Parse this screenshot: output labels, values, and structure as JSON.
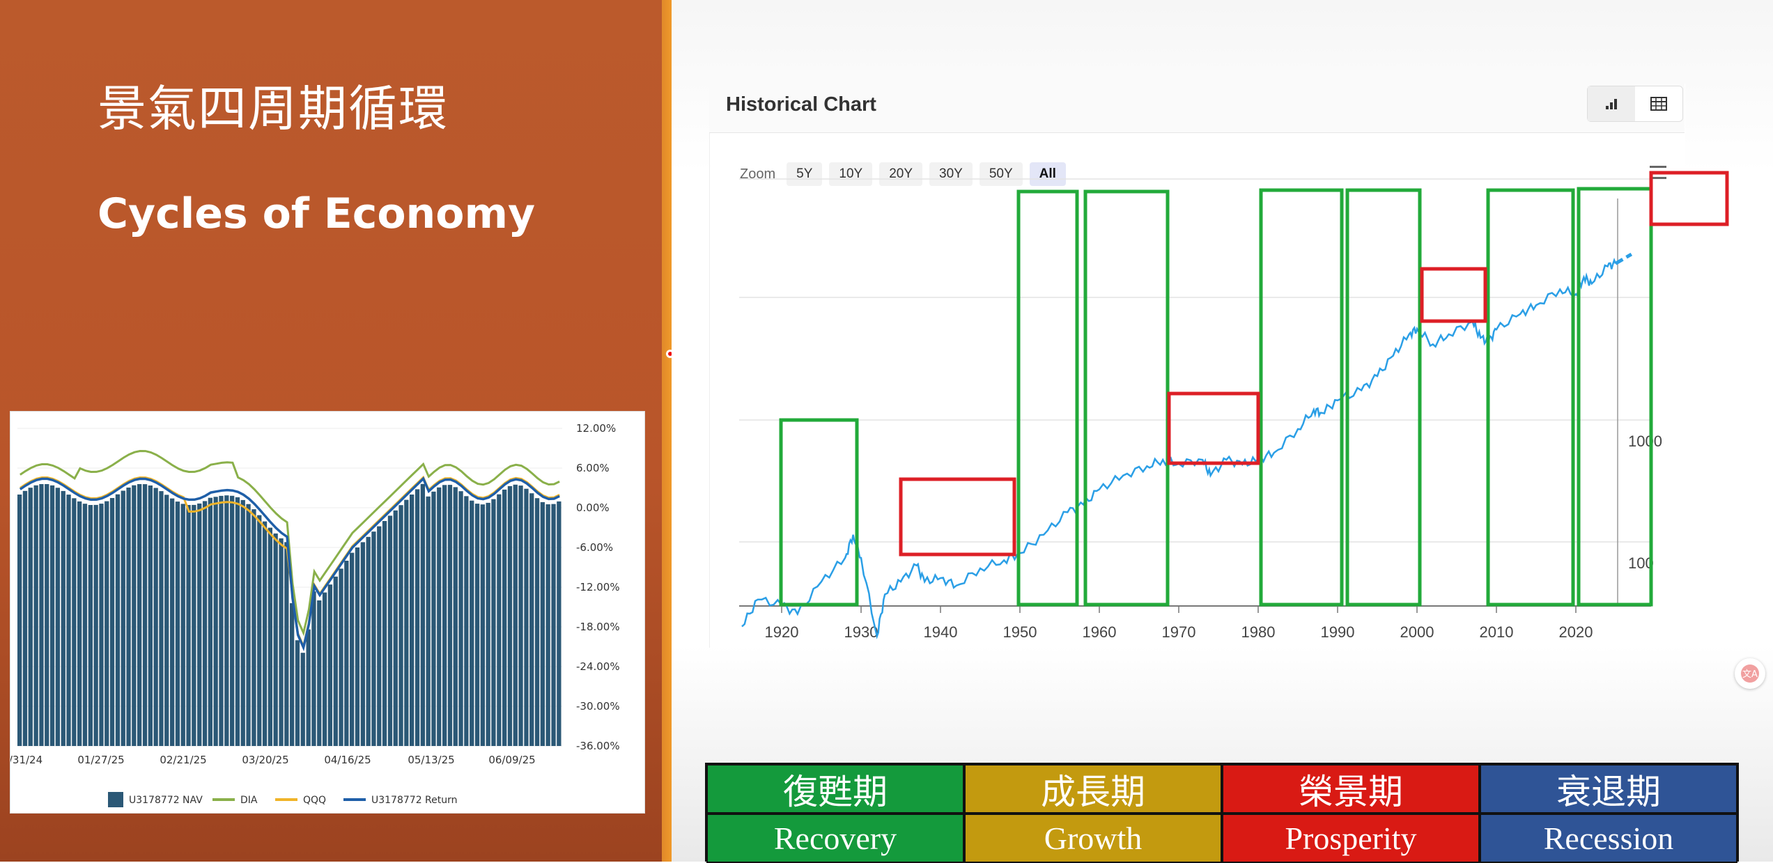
{
  "slide": {
    "title_zh": "景氣四周期循環",
    "title_en": "Cycles of Economy"
  },
  "portfolio_chart": {
    "y_ticks": [
      "12.00%",
      "6.00%",
      "0.00%",
      "-6.00%",
      "-12.00%",
      "-18.00%",
      "-24.00%",
      "-30.00%",
      "-36.00%"
    ],
    "x_ticks": [
      "/31/24",
      "01/27/25",
      "02/21/25",
      "03/20/25",
      "04/16/25",
      "05/13/25",
      "06/09/25"
    ],
    "legend": [
      "U3178772 NAV",
      "DIA",
      "QQQ",
      "U3178772 Return"
    ],
    "colors": {
      "nav": "#2b5876",
      "dia": "#8ab04a",
      "qqq": "#f0b429",
      "ret": "#1f5fa8"
    }
  },
  "historical_chart": {
    "title": "Historical Chart",
    "zoom_label": "Zoom",
    "zoom_options": [
      "5Y",
      "10Y",
      "20Y",
      "30Y",
      "50Y",
      "All"
    ],
    "zoom_selected": "All",
    "view_icons": [
      "bar-chart-icon",
      "table-icon"
    ],
    "x_ticks": [
      "1920",
      "1930",
      "1940",
      "1950",
      "1960",
      "1970",
      "1980",
      "1990",
      "2000",
      "2010",
      "2020"
    ],
    "y_ticks": [
      "1000",
      "100"
    ],
    "line_color": "#2b9fe6",
    "green_box_color": "#22aa3a",
    "red_box_color": "#dd1f26"
  },
  "chart_data": [
    {
      "type": "line",
      "title": "Historical Chart",
      "scale": "log",
      "x_range": [
        1915,
        2028
      ],
      "points": [
        [
          1915,
          30
        ],
        [
          1917,
          50
        ],
        [
          1920,
          45
        ],
        [
          1922,
          38
        ],
        [
          1925,
          70
        ],
        [
          1928,
          110
        ],
        [
          1929,
          170
        ],
        [
          1930,
          110
        ],
        [
          1932,
          25
        ],
        [
          1933,
          55
        ],
        [
          1935,
          70
        ],
        [
          1937,
          95
        ],
        [
          1938,
          70
        ],
        [
          1940,
          75
        ],
        [
          1942,
          65
        ],
        [
          1945,
          90
        ],
        [
          1948,
          105
        ],
        [
          1950,
          120
        ],
        [
          1953,
          170
        ],
        [
          1956,
          260
        ],
        [
          1958,
          300
        ],
        [
          1960,
          400
        ],
        [
          1963,
          520
        ],
        [
          1966,
          620
        ],
        [
          1968,
          700
        ],
        [
          1970,
          650
        ],
        [
          1973,
          700
        ],
        [
          1974,
          520
        ],
        [
          1976,
          700
        ],
        [
          1978,
          640
        ],
        [
          1980,
          700
        ],
        [
          1982,
          800
        ],
        [
          1985,
          1250
        ],
        [
          1987,
          1800
        ],
        [
          1988,
          1700
        ],
        [
          1990,
          2150
        ],
        [
          1993,
          2600
        ],
        [
          1995,
          3400
        ],
        [
          1997,
          5000
        ],
        [
          1999,
          7500
        ],
        [
          2000,
          8300
        ],
        [
          2002,
          6200
        ],
        [
          2004,
          7500
        ],
        [
          2007,
          9500
        ],
        [
          2008,
          7000
        ],
        [
          2009,
          6500
        ],
        [
          2010,
          8200
        ],
        [
          2013,
          11000
        ],
        [
          2015,
          13000
        ],
        [
          2018,
          17500
        ],
        [
          2020,
          16000
        ],
        [
          2021,
          22000
        ],
        [
          2022,
          19500
        ],
        [
          2024,
          27000
        ],
        [
          2025,
          28500
        ]
      ],
      "forecast": [
        [
          2025,
          28500
        ],
        [
          2027,
          34000
        ]
      ]
    },
    {
      "type": "bar",
      "series": [
        "U3178772 NAV",
        "DIA",
        "QQQ",
        "U3178772 Return"
      ],
      "y_range": [
        -36,
        12
      ]
    }
  ],
  "phase_table": {
    "row_zh": [
      "復甦期",
      "成長期",
      "榮景期",
      "衰退期"
    ],
    "row_en": [
      "Recovery",
      "Growth",
      "Prosperity",
      "Recession"
    ]
  }
}
